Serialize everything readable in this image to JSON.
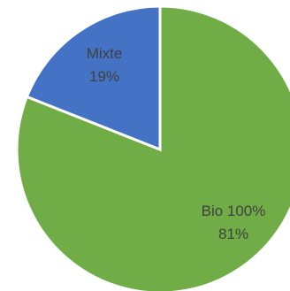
{
  "chart_data": {
    "type": "pie",
    "start_angle_deg": 0,
    "direction": "clockwise",
    "slice_border_color": "#ffffff",
    "label_color": "#404040",
    "slices": [
      {
        "category": "Bio 100%",
        "value": 81,
        "percent_label": "81%",
        "color": "#70ad47"
      },
      {
        "category": "Mixte",
        "value": 19,
        "percent_label": "19%",
        "color": "#4472c4"
      }
    ]
  }
}
